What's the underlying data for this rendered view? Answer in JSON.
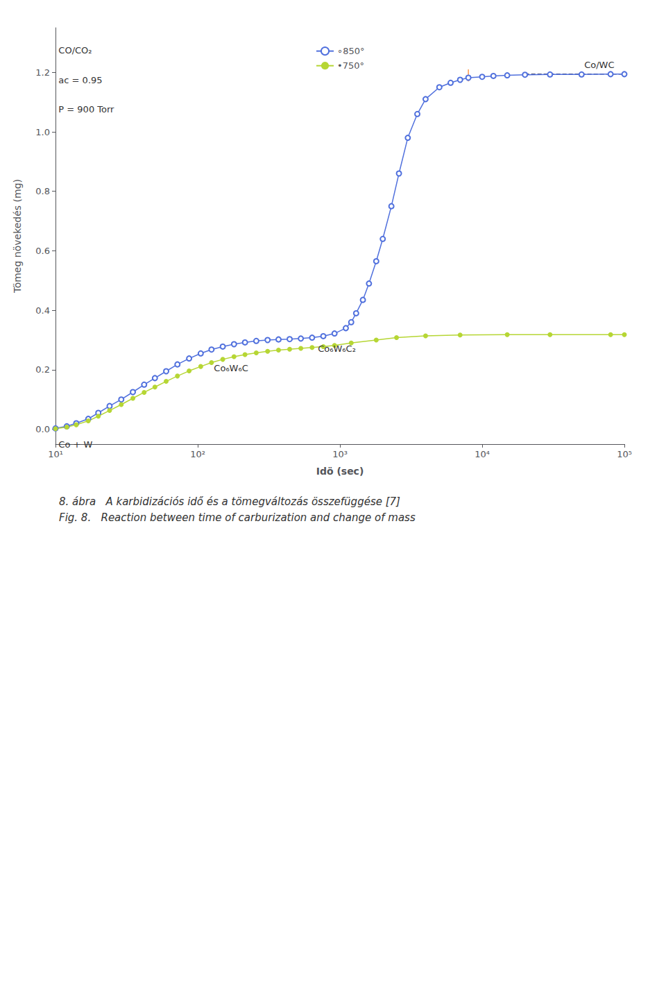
{
  "chart_data": {
    "type": "line",
    "title": "8. ábra   A karbidizációs idő és a tömegváltozás összefüggése [7]",
    "subtitle": "Fig. 8.   Reaction between time of carburization and change of mass",
    "xlabel": "Idö (sec)",
    "ylabel": "Tömeg növekedés (mg)",
    "log": "x",
    "grid": false,
    "legend": "upper center",
    "xlim": [
      10,
      100000
    ],
    "xticks": [
      {
        "value": 10,
        "label": "10¹"
      },
      {
        "value": 100,
        "label": "10²"
      },
      {
        "value": 1000,
        "label": "10³"
      },
      {
        "value": 10000,
        "label": "10⁴"
      },
      {
        "value": 100000,
        "label": "10⁵"
      }
    ],
    "ylim": [
      -0.05,
      1.35
    ],
    "yticks": [
      {
        "value": 0.0,
        "label": "0.0"
      },
      0.2,
      0.4,
      0.6,
      0.8,
      {
        "value": 1.0,
        "label": "1.0"
      },
      1.2
    ],
    "series": [
      {
        "name": "∘850°",
        "marker": "open circle",
        "line_style": "solid",
        "x": [
          10,
          12,
          14,
          17,
          20,
          24,
          29,
          35,
          42,
          50,
          60,
          72,
          87,
          105,
          125,
          150,
          180,
          215,
          258,
          310,
          370,
          443,
          531,
          637,
          764,
          916,
          1100,
          1200,
          1300,
          1450,
          1600,
          1800,
          2000,
          2300,
          2600,
          3000,
          3500,
          4000,
          5000,
          6000,
          7000,
          8000,
          10000,
          12000,
          15000,
          20000,
          30000,
          50000,
          80000,
          100000
        ],
        "values": [
          0.003,
          0.01,
          0.02,
          0.035,
          0.055,
          0.078,
          0.1,
          0.125,
          0.15,
          0.172,
          0.195,
          0.218,
          0.238,
          0.255,
          0.268,
          0.278,
          0.286,
          0.292,
          0.297,
          0.3,
          0.302,
          0.303,
          0.305,
          0.308,
          0.313,
          0.322,
          0.34,
          0.36,
          0.39,
          0.435,
          0.49,
          0.565,
          0.64,
          0.75,
          0.86,
          0.98,
          1.06,
          1.11,
          1.15,
          1.165,
          1.175,
          1.182,
          1.185,
          1.188,
          1.19,
          1.192,
          1.193,
          1.193,
          1.194,
          1.194
        ]
      },
      {
        "name": "•750°",
        "marker": "filled circle",
        "line_style": "solid",
        "x": [
          10,
          12,
          14,
          17,
          20,
          24,
          29,
          35,
          42,
          50,
          60,
          72,
          87,
          105,
          125,
          150,
          180,
          215,
          258,
          310,
          370,
          443,
          531,
          637,
          764,
          916,
          1200,
          1800,
          2500,
          4000,
          7000,
          15000,
          30000,
          80000,
          100000
        ],
        "values": [
          0.002,
          0.007,
          0.015,
          0.028,
          0.044,
          0.063,
          0.083,
          0.104,
          0.124,
          0.142,
          0.161,
          0.179,
          0.196,
          0.211,
          0.224,
          0.235,
          0.244,
          0.251,
          0.257,
          0.262,
          0.266,
          0.269,
          0.272,
          0.275,
          0.278,
          0.282,
          0.29,
          0.3,
          0.308,
          0.314,
          0.317,
          0.318,
          0.318,
          0.318,
          0.318
        ]
      },
      {
        "marker": "none",
        "line_style": "dashed",
        "x": [
          20000,
          100000
        ],
        "values": [
          1.194,
          1.194
        ]
      },
      {
        "marker": "none",
        "line_style": "solid",
        "x": [
          8000,
          8000
        ],
        "values": [
          1.17,
          1.21
        ]
      }
    ],
    "annotations": [
      {
        "text": "Co + W",
        "x": 10.5,
        "y": -0.035
      },
      {
        "text": "Co₆W₆C",
        "x": 130,
        "y": 0.19
      },
      {
        "text": "Co₆W₆C₂",
        "x": 700,
        "y": 0.255
      },
      {
        "text": "Co/WC",
        "x": 85000,
        "y": 1.21
      },
      {
        "text": "CO/CO₂",
        "x": 10.5,
        "y": 1.29
      },
      {
        "text": "aᴄ = 0.95",
        "x": 10.5,
        "y": 1.19
      },
      {
        "text": "P = 900 Torr",
        "x": 10.5,
        "y": 1.09
      }
    ]
  }
}
